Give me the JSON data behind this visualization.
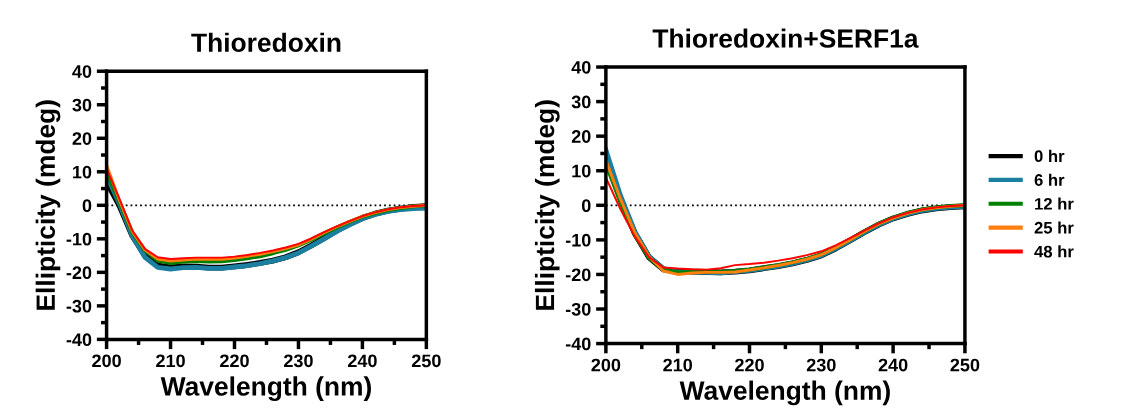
{
  "chart_data": [
    {
      "type": "line",
      "title": "Thioredoxin",
      "xlabel": "Wavelength (nm)",
      "ylabel": "Ellipticity (mdeg)",
      "x": [
        200,
        202,
        204,
        206,
        208,
        210,
        212,
        214,
        216,
        218,
        220,
        222,
        224,
        226,
        228,
        230,
        232,
        234,
        236,
        238,
        240,
        242,
        244,
        246,
        248,
        250
      ],
      "series": [
        {
          "color": "#000000",
          "values": [
            7,
            0,
            -9,
            -15,
            -18,
            -18.5,
            -18.2,
            -18.3,
            -18.6,
            -18.6,
            -18.2,
            -17.8,
            -17.2,
            -16.5,
            -15.5,
            -14,
            -12,
            -9.8,
            -7.5,
            -5.5,
            -3.8,
            -2.5,
            -1.6,
            -1,
            -0.5,
            -0.3
          ]
        },
        {
          "color": "#1a7fa0",
          "values": [
            9,
            0.5,
            -9,
            -15.5,
            -18.5,
            -19,
            -18.6,
            -18.5,
            -18.8,
            -18.8,
            -18.4,
            -18,
            -17.4,
            -16.6,
            -15.6,
            -14.2,
            -12.2,
            -10,
            -7.8,
            -5.8,
            -4,
            -2.7,
            -1.8,
            -1.3,
            -1,
            -0.8
          ]
        },
        {
          "color": "#008000",
          "values": [
            10,
            1,
            -8,
            -13.5,
            -16.5,
            -17.2,
            -16.8,
            -16.6,
            -16.8,
            -16.7,
            -16.3,
            -15.8,
            -15.2,
            -14.3,
            -13.3,
            -12,
            -10.3,
            -8.4,
            -6.6,
            -4.9,
            -3.4,
            -2.3,
            -1.4,
            -0.8,
            -0.3,
            0
          ]
        },
        {
          "color": "#ff7f0e",
          "values": [
            12,
            1.5,
            -7.8,
            -13.3,
            -16,
            -16.6,
            -16.3,
            -16,
            -16.1,
            -16.1,
            -15.7,
            -15.2,
            -14.6,
            -13.8,
            -12.9,
            -11.8,
            -10.1,
            -8.2,
            -6.4,
            -4.8,
            -3.3,
            -2.2,
            -1.3,
            -0.7,
            -0.3,
            0
          ]
        },
        {
          "color": "#ff0000",
          "values": [
            11,
            2,
            -7.5,
            -13,
            -15.5,
            -16,
            -15.8,
            -15.6,
            -15.6,
            -15.6,
            -15.3,
            -14.8,
            -14.2,
            -13.5,
            -12.6,
            -11.5,
            -9.9,
            -8,
            -6.3,
            -4.7,
            -3.2,
            -2.1,
            -1.2,
            -0.6,
            -0.2,
            0
          ]
        }
      ],
      "xlim": [
        200,
        250
      ],
      "ylim": [
        -40,
        40
      ],
      "xticks": [
        200,
        {
          "value": 205,
          "label": null
        },
        210,
        {
          "value": 215,
          "label": null
        },
        220,
        {
          "value": 225,
          "label": null
        },
        230,
        {
          "value": 235,
          "label": null
        },
        240,
        {
          "value": 245,
          "label": null
        },
        250
      ],
      "yticks": [
        -40,
        {
          "value": -35,
          "label": null
        },
        -30,
        {
          "value": -25,
          "label": null
        },
        -20,
        {
          "value": -15,
          "label": null
        },
        -10,
        {
          "value": -5,
          "label": null
        },
        0,
        {
          "value": 5,
          "label": null
        },
        10,
        {
          "value": 15,
          "label": null
        },
        20,
        {
          "value": 25,
          "label": null
        },
        30,
        {
          "value": 35,
          "label": null
        },
        40
      ],
      "ref_lines": [
        {
          "axis": "y",
          "value": 0,
          "color": "#000000",
          "line_style": "dotted"
        }
      ],
      "grid": false,
      "legend": false,
      "line_style": "solid",
      "marker": "none"
    },
    {
      "type": "line",
      "title": "Thioredoxin+SERF1a",
      "xlabel": "Wavelength (nm)",
      "ylabel": "Ellipticity (mdeg)",
      "x": [
        200,
        202,
        204,
        206,
        208,
        210,
        212,
        214,
        216,
        218,
        220,
        222,
        224,
        226,
        228,
        230,
        232,
        234,
        236,
        238,
        240,
        242,
        244,
        246,
        248,
        250
      ],
      "series": [
        {
          "name": "0 hr",
          "color": "#000000",
          "values": [
            14,
            2,
            -8,
            -15,
            -18.5,
            -19.2,
            -19.2,
            -19.3,
            -19.4,
            -19.2,
            -18.8,
            -18.2,
            -17.6,
            -16.8,
            -15.8,
            -14.5,
            -12.5,
            -10.2,
            -7.8,
            -5.6,
            -3.8,
            -2.5,
            -1.5,
            -0.9,
            -0.5,
            -0.3
          ]
        },
        {
          "name": "6 hr",
          "color": "#1a7fa0",
          "values": [
            16,
            3,
            -7.5,
            -14.8,
            -18.4,
            -19.3,
            -19.3,
            -19.4,
            -19.5,
            -19.2,
            -18.8,
            -18.2,
            -17.6,
            -16.8,
            -15.8,
            -14.5,
            -12.5,
            -10.2,
            -7.8,
            -5.6,
            -3.8,
            -2.5,
            -1.5,
            -0.9,
            -0.5,
            -0.3
          ]
        },
        {
          "name": "12 hr",
          "color": "#008000",
          "values": [
            12,
            1,
            -8.5,
            -15.2,
            -18.6,
            -19.4,
            -19.3,
            -19.3,
            -19.3,
            -19,
            -18.6,
            -18,
            -17.3,
            -16.5,
            -15.5,
            -14.2,
            -12.2,
            -9.9,
            -7.5,
            -5.3,
            -3.6,
            -2.2,
            -1.2,
            -0.6,
            -0.2,
            0
          ]
        },
        {
          "name": "25 hr",
          "color": "#ff7f0e",
          "values": [
            13,
            2,
            -7.8,
            -14.8,
            -19,
            -20,
            -19.6,
            -19.4,
            -19.4,
            -19.3,
            -18.7,
            -18.1,
            -17.4,
            -16.6,
            -15.6,
            -14.3,
            -12.3,
            -10,
            -7.6,
            -5.4,
            -3.7,
            -2.3,
            -1.3,
            -0.7,
            -0.3,
            0
          ]
        },
        {
          "name": "48 hr",
          "color": "#ff0000",
          "values": [
            8,
            -1,
            -9,
            -15,
            -18,
            -18.3,
            -18.5,
            -18.6,
            -18.2,
            -17.3,
            -17,
            -16.6,
            -16,
            -15.3,
            -14.4,
            -13.3,
            -11.6,
            -9.5,
            -7.3,
            -5.2,
            -3.5,
            -2.2,
            -1.2,
            -0.6,
            -0.2,
            0
          ]
        }
      ],
      "xlim": [
        200,
        250
      ],
      "ylim": [
        -40,
        40
      ],
      "xticks": [
        200,
        {
          "value": 205,
          "label": null
        },
        210,
        {
          "value": 215,
          "label": null
        },
        220,
        {
          "value": 225,
          "label": null
        },
        230,
        {
          "value": 235,
          "label": null
        },
        240,
        {
          "value": 245,
          "label": null
        },
        250
      ],
      "yticks": [
        -40,
        {
          "value": -35,
          "label": null
        },
        -30,
        {
          "value": -25,
          "label": null
        },
        -20,
        {
          "value": -15,
          "label": null
        },
        -10,
        {
          "value": -5,
          "label": null
        },
        0,
        {
          "value": 5,
          "label": null
        },
        10,
        {
          "value": 15,
          "label": null
        },
        20,
        {
          "value": 25,
          "label": null
        },
        30,
        {
          "value": 35,
          "label": null
        },
        40
      ],
      "ref_lines": [
        {
          "axis": "y",
          "value": 0,
          "color": "#000000",
          "line_style": "dotted"
        }
      ],
      "grid": false,
      "legend": "right",
      "line_style": "solid",
      "marker": "none"
    }
  ]
}
